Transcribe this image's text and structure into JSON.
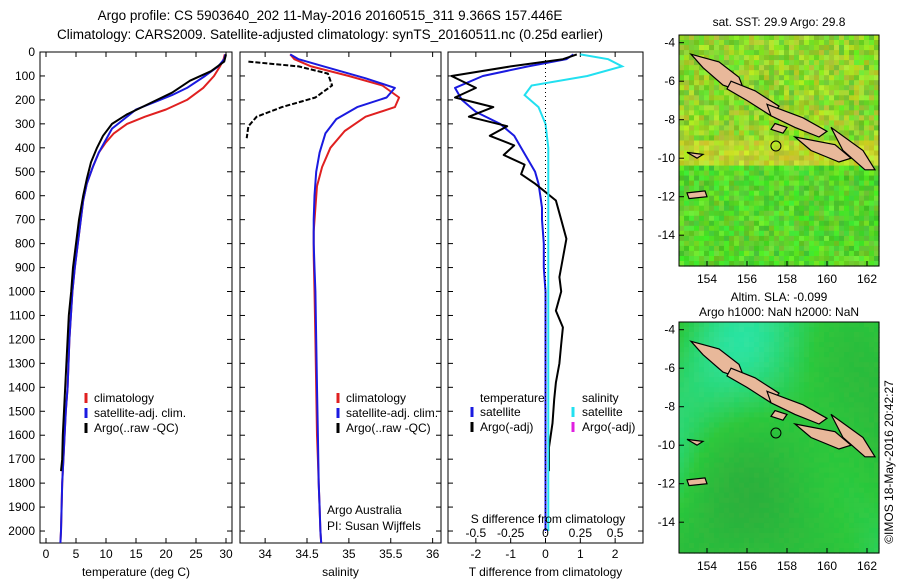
{
  "title": {
    "line1": "Argo profile: CS 5903640_202 11-May-2016 20160515_311 9.366S 157.446E",
    "line2": "Climatology: CARS2009. Satellite-adjusted climatology: synTS_20160511.nc (0.25d earlier)"
  },
  "colors": {
    "climatology": "#e02020",
    "satellite": "#1a1ae0",
    "argo": "#000000",
    "sal_satellite": "#22e0f0",
    "sal_argo": "#e020e0",
    "land": "#e8b89a"
  },
  "depth_axis": {
    "ylim": [
      0,
      2050
    ],
    "ticks": [
      "0",
      "100",
      "200",
      "300",
      "400",
      "500",
      "600",
      "700",
      "800",
      "900",
      "1000",
      "1100",
      "1200",
      "1300",
      "1400",
      "1500",
      "1600",
      "1700",
      "1800",
      "1900",
      "2000"
    ]
  },
  "chart_data": [
    {
      "type": "line",
      "xlabel": "temperature (deg C)",
      "xlim": [
        -1,
        31
      ],
      "xticks": [
        "0",
        "5",
        "10",
        "15",
        "20",
        "25",
        "30"
      ],
      "legend": [
        "climatology",
        "satellite-adj. clim.",
        "Argo(..raw -QC)"
      ],
      "series": [
        {
          "name": "climatology",
          "x": [
            29.8,
            29.6,
            29.0,
            28.0,
            26.2,
            23.5,
            20.0,
            16.5,
            13.5,
            11.3,
            9.9,
            8.8,
            7.8,
            6.8,
            6.2,
            5.8,
            5.3,
            4.8,
            4.4,
            3.9,
            3.6,
            3.3,
            3.1,
            2.9,
            2.7,
            2.6,
            2.5,
            2.4
          ],
          "y": [
            10,
            30,
            60,
            100,
            150,
            200,
            240,
            270,
            300,
            340,
            380,
            420,
            480,
            550,
            620,
            700,
            800,
            900,
            1000,
            1200,
            1400,
            1500,
            1600,
            1700,
            1800,
            1900,
            2000,
            2050
          ]
        },
        {
          "name": "satellite-adj. clim.",
          "x": [
            29.9,
            29.7,
            28.7,
            26.5,
            23.5,
            21.0,
            18.0,
            15.0,
            13.0,
            11.0,
            9.9,
            8.8,
            7.8,
            6.8,
            6.2,
            5.8,
            5.3,
            4.8,
            4.4,
            3.9,
            3.6,
            3.3,
            3.1,
            2.9,
            2.7,
            2.6,
            2.5,
            2.4
          ],
          "y": [
            10,
            30,
            60,
            100,
            150,
            180,
            210,
            240,
            280,
            320,
            370,
            420,
            480,
            550,
            620,
            700,
            800,
            900,
            1000,
            1200,
            1400,
            1500,
            1600,
            1700,
            1800,
            1900,
            2000,
            2050
          ]
        },
        {
          "name": "Argo(..raw -QC)",
          "x": [
            30.0,
            29.7,
            27.5,
            24.0,
            21.0,
            18.5,
            16.0,
            13.5,
            11.0,
            9.5,
            8.5,
            7.5,
            6.8,
            6.2,
            5.5,
            5.0,
            4.5,
            4.2,
            3.8,
            3.6,
            3.4,
            3.2,
            3.0,
            2.8,
            2.7,
            2.5
          ],
          "y": [
            10,
            40,
            80,
            120,
            170,
            200,
            230,
            260,
            300,
            350,
            400,
            460,
            530,
            600,
            700,
            800,
            900,
            1000,
            1100,
            1200,
            1300,
            1400,
            1500,
            1600,
            1700,
            1750
          ]
        }
      ]
    },
    {
      "type": "line",
      "xlabel": "salinity",
      "xlim": [
        33.7,
        36.1
      ],
      "xticks": [
        "34",
        "34.5",
        "35",
        "35.5",
        "36"
      ],
      "legend": [
        "climatology",
        "satellite-adj. clim.",
        "Argo(..raw -QC)"
      ],
      "annotation": [
        "Argo Australia",
        "PI: Susan Wijffels"
      ],
      "series": [
        {
          "name": "climatology",
          "x": [
            34.3,
            34.35,
            34.55,
            35.0,
            35.4,
            35.6,
            35.55,
            35.2,
            34.95,
            34.78,
            34.68,
            34.62,
            34.6,
            34.58,
            34.58,
            34.59,
            34.6,
            34.61,
            34.62,
            34.63,
            34.64,
            34.65,
            34.66,
            34.67
          ],
          "y": [
            10,
            30,
            60,
            100,
            140,
            190,
            230,
            270,
            330,
            400,
            480,
            560,
            650,
            750,
            850,
            1000,
            1200,
            1400,
            1600,
            1700,
            1800,
            1900,
            2000,
            2050
          ]
        },
        {
          "name": "satellite-adj. clim.",
          "x": [
            34.3,
            34.4,
            34.7,
            35.2,
            35.55,
            35.45,
            35.1,
            34.85,
            34.72,
            34.65,
            34.61,
            34.59,
            34.58,
            34.58,
            34.59,
            34.6,
            34.61,
            34.62,
            34.63,
            34.64,
            34.65,
            34.66,
            34.67
          ],
          "y": [
            10,
            30,
            60,
            110,
            150,
            190,
            230,
            280,
            340,
            420,
            500,
            600,
            700,
            800,
            900,
            1000,
            1200,
            1400,
            1600,
            1800,
            1900,
            2000,
            2050
          ]
        },
        {
          "name": "Argo(..raw -QC)",
          "x": [
            33.8,
            33.95,
            34.4,
            34.75,
            34.8,
            34.6,
            34.2,
            33.9,
            33.8,
            33.78
          ],
          "y": [
            40,
            45,
            60,
            90,
            140,
            190,
            230,
            270,
            310,
            360
          ]
        }
      ]
    },
    {
      "type": "line",
      "xlabel": "T difference from climatology",
      "xlim": [
        -2.8,
        2.8
      ],
      "xticks": [
        "-2",
        "-1",
        "0",
        "1",
        "2"
      ],
      "top_label": "S difference from climatology",
      "top_xticks": [
        "-0.5",
        "-0.25",
        "0",
        "0.25",
        "0.5"
      ],
      "top_xlim": [
        -0.7,
        0.7
      ],
      "legend_left": [
        "temperature",
        "satellite",
        "Argo(-adj)"
      ],
      "legend_right": [
        "salinity",
        "satellite",
        "Argo(-adj)"
      ],
      "series": [
        {
          "name": "temperature satellite",
          "x": [
            0.8,
            0.6,
            -0.5,
            -1.8,
            -2.6,
            -2.4,
            -2.0,
            -1.3,
            -0.9,
            -0.7,
            -0.5,
            -0.3,
            -0.2,
            -0.15,
            -0.1,
            -0.1,
            -0.05,
            -0.05,
            0.0,
            0.0,
            0.0,
            0.0,
            0.0
          ],
          "y": [
            10,
            30,
            60,
            100,
            150,
            200,
            250,
            300,
            350,
            400,
            450,
            500,
            550,
            600,
            650,
            700,
            800,
            900,
            1000,
            1200,
            1500,
            1800,
            2000
          ]
        },
        {
          "name": "temperature Argo(-adj)",
          "x": [
            0.9,
            0.5,
            -1.0,
            -2.7,
            -2.0,
            -2.6,
            -1.5,
            -2.2,
            -1.1,
            -1.6,
            -0.9,
            -1.2,
            -0.6,
            -0.7,
            -0.3,
            0.3,
            0.45,
            0.6,
            0.5,
            0.4,
            0.45,
            0.3,
            0.5,
            0.45,
            0.4,
            0.3,
            0.25,
            0.2,
            0.1,
            0.1
          ],
          "y": [
            10,
            30,
            60,
            100,
            150,
            190,
            230,
            270,
            310,
            350,
            390,
            430,
            470,
            510,
            550,
            620,
            700,
            780,
            860,
            940,
            1000,
            1080,
            1150,
            1220,
            1300,
            1380,
            1450,
            1550,
            1650,
            1750
          ]
        },
        {
          "name": "salinity satellite",
          "x": [
            0.25,
            0.45,
            0.55,
            0.3,
            -0.1,
            -0.15,
            -0.05,
            0.0,
            0.02,
            0.02,
            0.02,
            0.02,
            0.02,
            0.02,
            0.02
          ],
          "y": [
            10,
            30,
            60,
            100,
            140,
            180,
            230,
            300,
            400,
            600,
            800,
            1000,
            1400,
            1800,
            2000
          ]
        }
      ]
    },
    {
      "type": "heatmap",
      "title": "sat. SST: 29.9  Argo: 29.8",
      "xticks": [
        "154",
        "156",
        "158",
        "160",
        "162"
      ],
      "yticks": [
        "-4",
        "-6",
        "-8",
        "-10",
        "-12",
        "-14"
      ],
      "xlim": [
        152.6,
        162.6
      ],
      "ylim": [
        -15.6,
        -3.6
      ],
      "argo_position": [
        157.446,
        -9.366
      ]
    },
    {
      "type": "heatmap",
      "title_line1": "Altim. SLA: -0.099",
      "title_line2": "Argo h1000: NaN h2000: NaN",
      "xticks": [
        "154",
        "156",
        "158",
        "160",
        "162"
      ],
      "yticks": [
        "-4",
        "-6",
        "-8",
        "-10",
        "-12",
        "-14"
      ],
      "xlim": [
        152.6,
        162.6
      ],
      "ylim": [
        -15.6,
        -3.6
      ],
      "argo_position": [
        157.446,
        -9.366
      ]
    }
  ],
  "side_label": "©IMOS 18-May-2016 20:42:27"
}
